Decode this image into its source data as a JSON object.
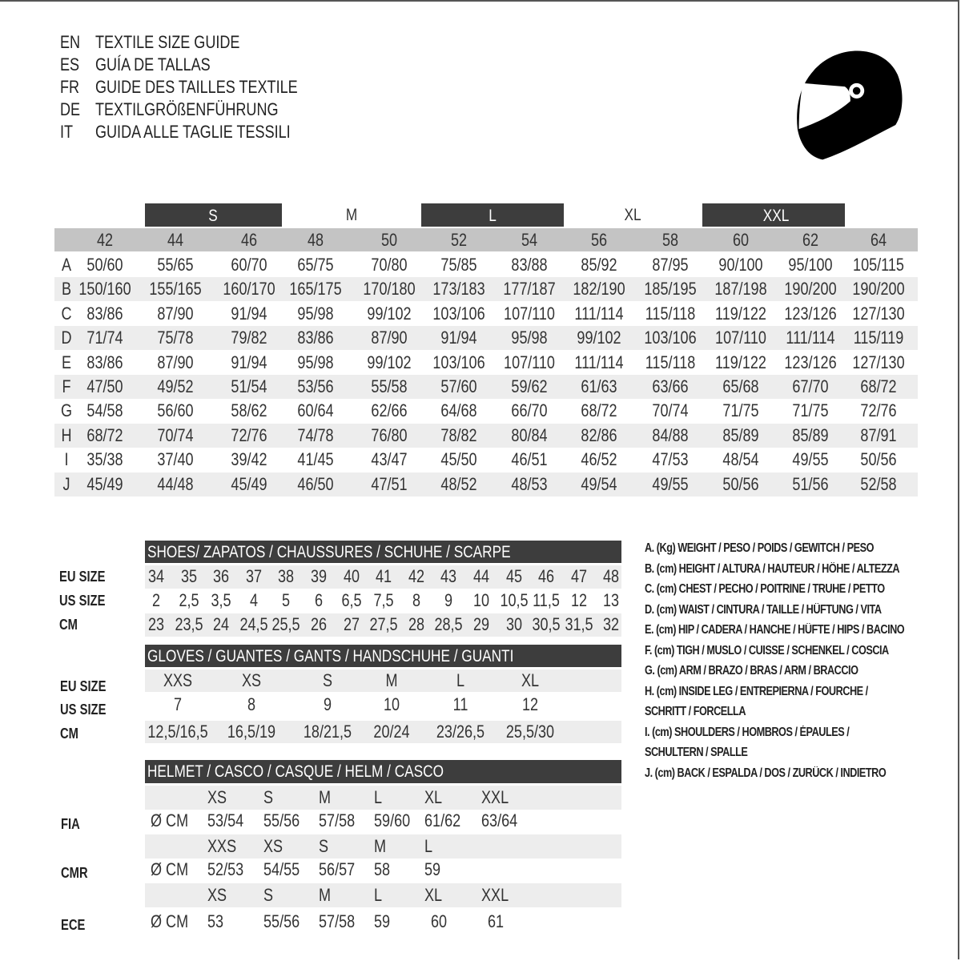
{
  "titles": [
    {
      "code": "EN",
      "text": "TEXTILE SIZE GUIDE"
    },
    {
      "code": "ES",
      "text": "GUÍA DE TALLAS"
    },
    {
      "code": "FR",
      "text": "GUIDE DES TAILLES TEXTILE"
    },
    {
      "code": "DE",
      "text": "TEXTILGRÖßENFÜHRUNG"
    },
    {
      "code": "IT",
      "text": "GUIDA ALLE TAGLIE TESSILI"
    }
  ],
  "icon": "helmet-icon",
  "textile": {
    "size_groups": [
      "S",
      "M",
      "L",
      "XL",
      "XXL"
    ],
    "sizes": [
      "42",
      "44",
      "46",
      "48",
      "50",
      "52",
      "54",
      "56",
      "58",
      "60",
      "62",
      "64"
    ],
    "rows": [
      {
        "label": "A",
        "values": [
          "50/60",
          "55/65",
          "60/70",
          "65/75",
          "70/80",
          "75/85",
          "83/88",
          "85/92",
          "87/95",
          "90/100",
          "95/100",
          "105/115"
        ]
      },
      {
        "label": "B",
        "values": [
          "150/160",
          "155/165",
          "160/170",
          "165/175",
          "170/180",
          "173/183",
          "177/187",
          "182/190",
          "185/195",
          "187/198",
          "190/200",
          "190/200"
        ]
      },
      {
        "label": "C",
        "values": [
          "83/86",
          "87/90",
          "91/94",
          "95/98",
          "99/102",
          "103/106",
          "107/110",
          "111/114",
          "115/118",
          "119/122",
          "123/126",
          "127/130"
        ]
      },
      {
        "label": "D",
        "values": [
          "71/74",
          "75/78",
          "79/82",
          "83/86",
          "87/90",
          "91/94",
          "95/98",
          "99/102",
          "103/106",
          "107/110",
          "111/114",
          "115/119"
        ]
      },
      {
        "label": "E",
        "values": [
          "83/86",
          "87/90",
          "91/94",
          "95/98",
          "99/102",
          "103/106",
          "107/110",
          "111/114",
          "115/118",
          "119/122",
          "123/126",
          "127/130"
        ]
      },
      {
        "label": "F",
        "values": [
          "47/50",
          "49/52",
          "51/54",
          "53/56",
          "55/58",
          "57/60",
          "59/62",
          "61/63",
          "63/66",
          "65/68",
          "67/70",
          "68/72"
        ]
      },
      {
        "label": "G",
        "values": [
          "54/58",
          "56/60",
          "58/62",
          "60/64",
          "62/66",
          "64/68",
          "66/70",
          "68/72",
          "70/74",
          "71/75",
          "71/75",
          "72/76"
        ]
      },
      {
        "label": "H",
        "values": [
          "68/72",
          "70/74",
          "72/76",
          "74/78",
          "76/80",
          "78/82",
          "80/84",
          "82/86",
          "84/88",
          "85/89",
          "85/89",
          "87/91"
        ]
      },
      {
        "label": "I",
        "values": [
          "35/38",
          "37/40",
          "39/42",
          "41/45",
          "43/47",
          "45/50",
          "46/51",
          "46/52",
          "47/53",
          "48/54",
          "49/55",
          "50/56"
        ]
      },
      {
        "label": "J",
        "values": [
          "45/49",
          "44/48",
          "45/49",
          "46/50",
          "47/51",
          "48/52",
          "48/53",
          "49/54",
          "49/55",
          "50/56",
          "51/56",
          "52/58"
        ]
      }
    ]
  },
  "shoes": {
    "title": "SHOES/ ZAPATOS / CHAUSSURES / SCHUHE / SCARPE",
    "rows": [
      {
        "label": "EU SIZE",
        "values": [
          "34",
          "35",
          "36",
          "37",
          "38",
          "39",
          "40",
          "41",
          "42",
          "43",
          "44",
          "45",
          "46",
          "47",
          "48"
        ]
      },
      {
        "label": "US SIZE",
        "values": [
          "2",
          "2,5",
          "3,5",
          "4",
          "5",
          "6",
          "6,5",
          "7,5",
          "8",
          "9",
          "10",
          "10,5",
          "11,5",
          "12",
          "13"
        ]
      },
      {
        "label": "CM",
        "values": [
          "23",
          "23,5",
          "24",
          "24,5",
          "25,5",
          "26",
          "27",
          "27,5",
          "28",
          "28,5",
          "29",
          "30",
          "30,5",
          "31,5",
          "32"
        ]
      }
    ]
  },
  "gloves": {
    "title": "GLOVES / GUANTES / GANTS / HANDSCHUHE / GUANTI",
    "rows": [
      {
        "label": "EU SIZE",
        "values": [
          "XXS",
          "XS",
          "S",
          "M",
          "L",
          "XL"
        ]
      },
      {
        "label": "US SIZE",
        "values": [
          "7",
          "8",
          "9",
          "10",
          "11",
          "12"
        ]
      },
      {
        "label": "CM",
        "values": [
          "12,5/16,5",
          "16,5/19",
          "18/21,5",
          "20/24",
          "23/26,5",
          "25,5/30"
        ]
      }
    ]
  },
  "helmet": {
    "title": "HELMET / CASCO / CASQUE / HELM / CASCO",
    "unit": "Ø CM",
    "standards": [
      {
        "label": "FIA",
        "sizes": [
          "XS",
          "S",
          "M",
          "L",
          "XL",
          "XXL"
        ],
        "values": [
          "53/54",
          "55/56",
          "57/58",
          "59/60",
          "61/62",
          "63/64"
        ]
      },
      {
        "label": "CMR",
        "sizes": [
          "XXS",
          "XS",
          "S",
          "M",
          "L"
        ],
        "values": [
          "52/53",
          "54/55",
          "56/57",
          "58",
          "59"
        ]
      },
      {
        "label": "ECE",
        "sizes": [
          "XS",
          "S",
          "M",
          "L",
          "XL",
          "XXL"
        ],
        "values": [
          "53",
          "55/56",
          "57/58",
          "59",
          "60",
          "61"
        ]
      }
    ]
  },
  "legend": [
    "A. (Kg) WEIGHT / PESO / POIDS / GEWITCH / PESO",
    "B. (cm) HEIGHT / ALTURA / HAUTEUR / HÖHE / ALTEZZA",
    "C. (cm) CHEST / PECHO / POITRINE / TRUHE / PETTO",
    "D. (cm) WAIST / CINTURA / TAILLE / HÜFTUNG / VITA",
    "E. (cm) HIP / CADERA / HANCHE / HÜFTE / HIPS /  BACINO",
    "F.  (cm) TIGH / MUSLO / CUISSE / SCHENKEL / COSCIA",
    "G. (cm) ARM  / BRAZO / BRAS / ARM / BRACCIO",
    "H. (cm) INSIDE LEG / ENTREPIERNA / FOURCHE /",
    "SCHRITT / FORCELLA",
    "I.  (cm) SHOULDERS / HOMBROS / ÉPAULES /",
    "SCHULTERN / SPALLE",
    "J. (cm) BACK / ESPALDA / DOS / ZURÜCK / INDIETRO"
  ]
}
